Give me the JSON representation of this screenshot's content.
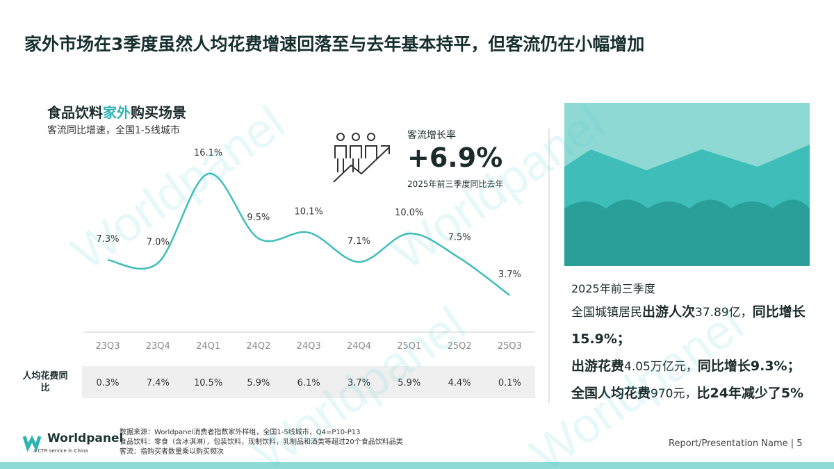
{
  "title": "家外市场在3季度虽然人均花费增速回落至与去年基本持平，但客流仍在小幅增加",
  "chart_data": {
    "type": "line",
    "title_parts": [
      "食品饮料",
      "家外",
      "购买场景"
    ],
    "subtitle": "客流同比增速，全国1-5线城市",
    "categories": [
      "23Q3",
      "23Q4",
      "24Q1",
      "24Q2",
      "24Q3",
      "24Q4",
      "25Q1",
      "25Q2",
      "25Q3"
    ],
    "values": [
      7.3,
      7.0,
      16.1,
      9.5,
      10.1,
      7.1,
      10.0,
      7.5,
      3.7
    ],
    "value_labels": [
      "7.3%",
      "7.0%",
      "16.1%",
      "9.5%",
      "10.1%",
      "7.1%",
      "10.0%",
      "7.5%",
      "3.7%"
    ],
    "color": "#3dbdbb"
  },
  "table": {
    "label": "人均花费同比",
    "values": [
      "0.3%",
      "7.4%",
      "10.5%",
      "5.9%",
      "6.1%",
      "3.7%",
      "5.9%",
      "4.4%",
      "0.1%"
    ]
  },
  "callout": {
    "label": "客流增长率",
    "value": "+6.9%",
    "note": "2025年前三季度同比去年"
  },
  "panel": {
    "heading": "2025年前三季度",
    "paragraphs": [
      [
        {
          "text": "全国城镇居民",
          "bold": false
        },
        {
          "text": "出游人次",
          "bold": true
        },
        {
          "text": "37.89亿，",
          "bold": false
        },
        {
          "text": "同比增长15.9%；",
          "bold": true
        }
      ],
      [
        {
          "text": "出游花费",
          "bold": true
        },
        {
          "text": "4.05万亿元，",
          "bold": false
        },
        {
          "text": "同比增长9.3%；",
          "bold": true
        }
      ],
      [
        {
          "text": "全国人均花费",
          "bold": true
        },
        {
          "text": "970元，",
          "bold": false
        },
        {
          "text": "比24年减少了5%",
          "bold": true
        }
      ]
    ]
  },
  "footnotes": [
    "数据来源：Worldpanel消费者指数家外样组，全国1-5线城市，Q4=P10-P13",
    "食品饮料：零食（含冰淇淋），包装饮料，现制饮料，乳制品和酒类等超过20个食品饮料品类",
    "客流：指购买者数量乘以购买频次"
  ],
  "logo": {
    "name": "Worldpanel",
    "tagline": "a CTR service in China"
  },
  "footer": "Report/Presentation Name | 5",
  "watermark": "Worldpanel"
}
